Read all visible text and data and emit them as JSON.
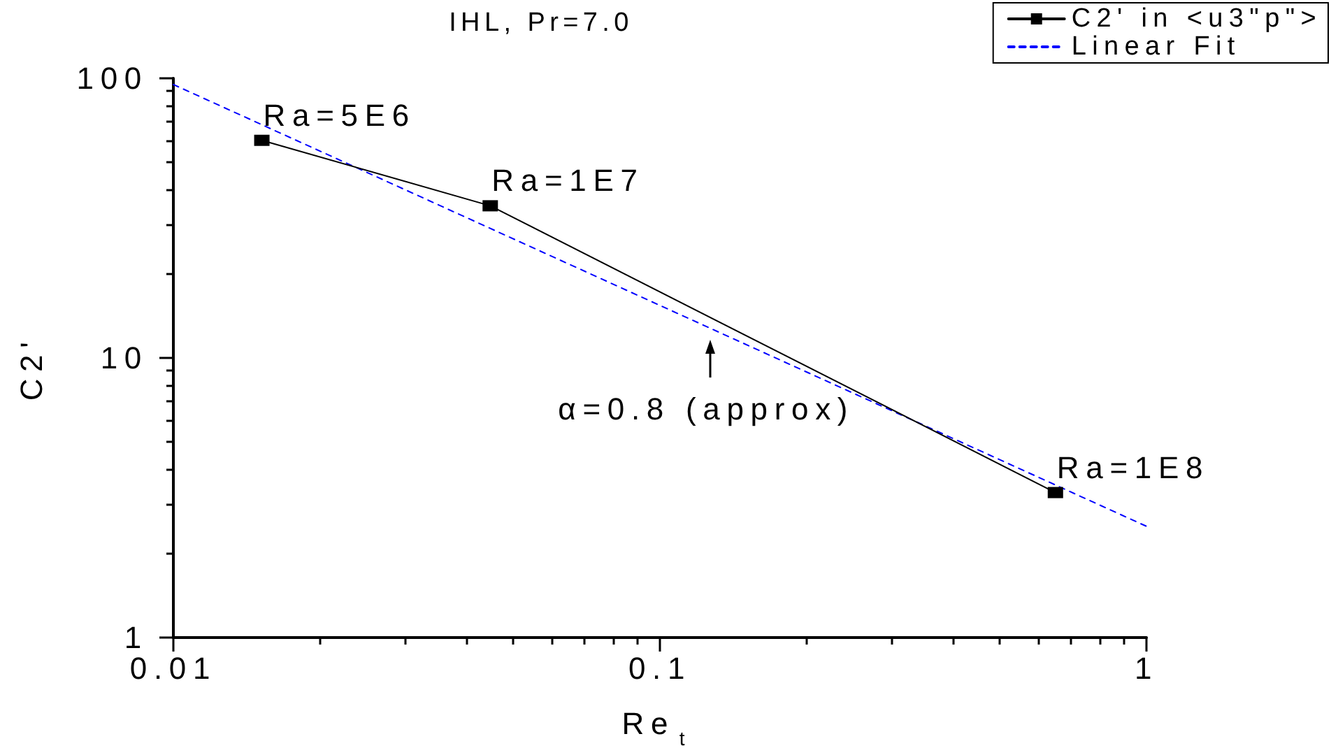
{
  "chart_data": {
    "type": "line",
    "title": "IHL, Pr=7.0",
    "xlabel": "Re$_{t}$",
    "ylabel": "C2'",
    "series": [
      {
        "name": "C2' in <u3\"p\">",
        "color": "#000000",
        "x": [
          0.0152,
          0.0448,
          0.65
        ],
        "values": [
          60,
          35,
          3.3
        ],
        "marker": "square",
        "line_style": "solid"
      },
      {
        "name": "Linear Fit",
        "color": "#0000ff",
        "x": [
          0.01,
          1
        ],
        "values": [
          95,
          2.5
        ],
        "marker": "none",
        "line_style": "dashed"
      }
    ],
    "log": "xy",
    "xlim": [
      0.01,
      1
    ],
    "ylim": [
      1,
      100
    ],
    "xticks": [
      0.01,
      {
        "value": 0.02,
        "label": null
      },
      {
        "value": 0.03,
        "label": null
      },
      {
        "value": 0.04,
        "label": null
      },
      {
        "value": 0.05,
        "label": null
      },
      {
        "value": 0.06,
        "label": null
      },
      {
        "value": 0.07,
        "label": null
      },
      {
        "value": 0.08,
        "label": null
      },
      {
        "value": 0.09,
        "label": null
      },
      0.1,
      {
        "value": 0.2,
        "label": null
      },
      {
        "value": 0.3,
        "label": null
      },
      {
        "value": 0.4,
        "label": null
      },
      {
        "value": 0.5,
        "label": null
      },
      {
        "value": 0.6,
        "label": null
      },
      {
        "value": 0.7,
        "label": null
      },
      {
        "value": 0.8,
        "label": null
      },
      {
        "value": 0.9,
        "label": null
      },
      1
    ],
    "yticks": [
      1,
      {
        "value": 2,
        "label": null
      },
      {
        "value": 3,
        "label": null
      },
      {
        "value": 4,
        "label": null
      },
      {
        "value": 5,
        "label": null
      },
      {
        "value": 6,
        "label": null
      },
      {
        "value": 7,
        "label": null
      },
      {
        "value": 8,
        "label": null
      },
      {
        "value": 9,
        "label": null
      },
      10,
      {
        "value": 20,
        "label": null
      },
      {
        "value": 30,
        "label": null
      },
      {
        "value": 40,
        "label": null
      },
      {
        "value": 50,
        "label": null
      },
      {
        "value": 60,
        "label": null
      },
      {
        "value": 70,
        "label": null
      },
      {
        "value": 80,
        "label": null
      },
      {
        "value": 90,
        "label": null
      },
      100
    ],
    "legend": "top right",
    "annotations": [
      {
        "text": "Ra=5E6",
        "x": 0.0152,
        "y": 60
      },
      {
        "text": "Ra=1E7",
        "x": 0.0448,
        "y": 35
      },
      {
        "text": "Ra=1E8",
        "x": 0.65,
        "y": 3.3
      },
      {
        "text": "α=0.8 (approx)",
        "x": 0.127,
        "y": 12.8
      }
    ]
  }
}
